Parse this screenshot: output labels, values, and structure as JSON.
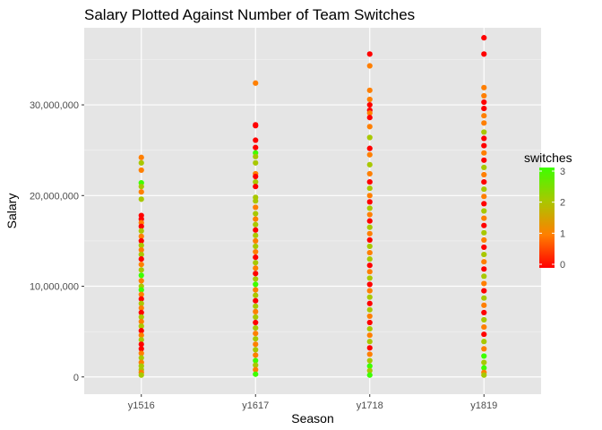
{
  "chart_data": {
    "type": "scatter",
    "title": "Salary Plotted Against Number of Team Switches",
    "xlabel": "Season",
    "ylabel": "Salary",
    "categories": [
      "y1516",
      "y1617",
      "y1718",
      "y1819"
    ],
    "ylim": [
      -1900000,
      38500000
    ],
    "y_ticks": [
      0,
      10000000,
      20000000,
      30000000
    ],
    "y_tick_labels": [
      "0",
      "10,000,000",
      "20,000,000",
      "30,000,000"
    ],
    "grid": true,
    "panel_background": "#e5e5e5",
    "legend": {
      "title": "switches",
      "position": "right",
      "scale": [
        0,
        3
      ],
      "ticks": [
        0,
        1,
        2,
        3
      ],
      "tick_labels": [
        "0",
        "1",
        "2",
        "3"
      ],
      "colors": [
        "#ff0000",
        "#ff7f00",
        "#a8c800",
        "#3dff00"
      ]
    },
    "series": [
      {
        "category": "y1516",
        "points": [
          [
            24200000,
            1
          ],
          [
            23600000,
            2
          ],
          [
            22800000,
            1
          ],
          [
            21400000,
            3
          ],
          [
            21000000,
            2
          ],
          [
            20400000,
            1
          ],
          [
            19600000,
            2
          ],
          [
            17800000,
            0
          ],
          [
            17400000,
            0
          ],
          [
            17000000,
            1
          ],
          [
            16600000,
            0
          ],
          [
            16100000,
            2
          ],
          [
            15500000,
            1
          ],
          [
            15000000,
            0
          ],
          [
            14500000,
            2
          ],
          [
            14000000,
            1
          ],
          [
            13500000,
            2
          ],
          [
            13000000,
            0
          ],
          [
            12400000,
            1
          ],
          [
            11800000,
            2
          ],
          [
            11200000,
            3
          ],
          [
            10600000,
            1
          ],
          [
            10000000,
            2
          ],
          [
            9600000,
            3
          ],
          [
            9100000,
            1
          ],
          [
            8600000,
            0
          ],
          [
            8100000,
            2
          ],
          [
            7600000,
            1
          ],
          [
            7100000,
            0
          ],
          [
            6600000,
            2
          ],
          [
            6100000,
            1
          ],
          [
            5600000,
            2
          ],
          [
            5100000,
            0
          ],
          [
            4600000,
            1
          ],
          [
            4100000,
            2
          ],
          [
            3600000,
            0
          ],
          [
            3100000,
            0
          ],
          [
            2600000,
            1
          ],
          [
            2100000,
            2
          ],
          [
            1600000,
            1
          ],
          [
            1200000,
            2
          ],
          [
            800000,
            2
          ],
          [
            500000,
            1
          ],
          [
            200000,
            2
          ]
        ]
      },
      {
        "category": "y1617",
        "points": [
          [
            32400000,
            1
          ],
          [
            27800000,
            0
          ],
          [
            27700000,
            0
          ],
          [
            26100000,
            0
          ],
          [
            25300000,
            0
          ],
          [
            24700000,
            3
          ],
          [
            24300000,
            2
          ],
          [
            23600000,
            2
          ],
          [
            22400000,
            1
          ],
          [
            22100000,
            0
          ],
          [
            21500000,
            2
          ],
          [
            21000000,
            0
          ],
          [
            19800000,
            2
          ],
          [
            19400000,
            2
          ],
          [
            18700000,
            1
          ],
          [
            18000000,
            2
          ],
          [
            17400000,
            1
          ],
          [
            16800000,
            2
          ],
          [
            16200000,
            0
          ],
          [
            15600000,
            2
          ],
          [
            15000000,
            1
          ],
          [
            14400000,
            2
          ],
          [
            13800000,
            1
          ],
          [
            13200000,
            0
          ],
          [
            12600000,
            2
          ],
          [
            12000000,
            1
          ],
          [
            11400000,
            0
          ],
          [
            10800000,
            2
          ],
          [
            10200000,
            3
          ],
          [
            9600000,
            1
          ],
          [
            9000000,
            2
          ],
          [
            8400000,
            0
          ],
          [
            7800000,
            2
          ],
          [
            7200000,
            1
          ],
          [
            6600000,
            2
          ],
          [
            6000000,
            0
          ],
          [
            5400000,
            2
          ],
          [
            4800000,
            1
          ],
          [
            4200000,
            2
          ],
          [
            3600000,
            1
          ],
          [
            3000000,
            2
          ],
          [
            2400000,
            1
          ],
          [
            1800000,
            3
          ],
          [
            1300000,
            2
          ],
          [
            800000,
            1
          ],
          [
            300000,
            3
          ]
        ]
      },
      {
        "category": "y1718",
        "points": [
          [
            35600000,
            0
          ],
          [
            34300000,
            1
          ],
          [
            31600000,
            1
          ],
          [
            30600000,
            1
          ],
          [
            30000000,
            0
          ],
          [
            29400000,
            0
          ],
          [
            29100000,
            1
          ],
          [
            28600000,
            0
          ],
          [
            27600000,
            1
          ],
          [
            26400000,
            2
          ],
          [
            25200000,
            0
          ],
          [
            24500000,
            1
          ],
          [
            23400000,
            2
          ],
          [
            22400000,
            1
          ],
          [
            21500000,
            0
          ],
          [
            20800000,
            2
          ],
          [
            20000000,
            1
          ],
          [
            19300000,
            0
          ],
          [
            18600000,
            2
          ],
          [
            17900000,
            1
          ],
          [
            17200000,
            0
          ],
          [
            16500000,
            2
          ],
          [
            15800000,
            1
          ],
          [
            15100000,
            0
          ],
          [
            14400000,
            2
          ],
          [
            13700000,
            1
          ],
          [
            13000000,
            2
          ],
          [
            12300000,
            0
          ],
          [
            11600000,
            1
          ],
          [
            10900000,
            2
          ],
          [
            10200000,
            0
          ],
          [
            9500000,
            1
          ],
          [
            8800000,
            2
          ],
          [
            8100000,
            0
          ],
          [
            7400000,
            2
          ],
          [
            6700000,
            1
          ],
          [
            6000000,
            0
          ],
          [
            5300000,
            2
          ],
          [
            4600000,
            1
          ],
          [
            3900000,
            2
          ],
          [
            3200000,
            0
          ],
          [
            2500000,
            1
          ],
          [
            1800000,
            2
          ],
          [
            1200000,
            3
          ],
          [
            700000,
            2
          ],
          [
            200000,
            3
          ]
        ]
      },
      {
        "category": "y1819",
        "points": [
          [
            37400000,
            0
          ],
          [
            35600000,
            0
          ],
          [
            31900000,
            1
          ],
          [
            31000000,
            1
          ],
          [
            30300000,
            0
          ],
          [
            29600000,
            0
          ],
          [
            28800000,
            1
          ],
          [
            28000000,
            1
          ],
          [
            27000000,
            2
          ],
          [
            26300000,
            0
          ],
          [
            25500000,
            0
          ],
          [
            24700000,
            1
          ],
          [
            23900000,
            0
          ],
          [
            23100000,
            2
          ],
          [
            22300000,
            1
          ],
          [
            21500000,
            0
          ],
          [
            20700000,
            2
          ],
          [
            19900000,
            1
          ],
          [
            19100000,
            0
          ],
          [
            18300000,
            2
          ],
          [
            17500000,
            1
          ],
          [
            16700000,
            0
          ],
          [
            15900000,
            2
          ],
          [
            15100000,
            1
          ],
          [
            14300000,
            0
          ],
          [
            13500000,
            2
          ],
          [
            12700000,
            1
          ],
          [
            11900000,
            0
          ],
          [
            11100000,
            2
          ],
          [
            10300000,
            1
          ],
          [
            9500000,
            0
          ],
          [
            8700000,
            2
          ],
          [
            7900000,
            1
          ],
          [
            7100000,
            0
          ],
          [
            6300000,
            2
          ],
          [
            5500000,
            1
          ],
          [
            4700000,
            0
          ],
          [
            3900000,
            2
          ],
          [
            3100000,
            1
          ],
          [
            2300000,
            3
          ],
          [
            1600000,
            2
          ],
          [
            1000000,
            3
          ],
          [
            500000,
            1
          ],
          [
            200000,
            2
          ]
        ]
      }
    ]
  }
}
